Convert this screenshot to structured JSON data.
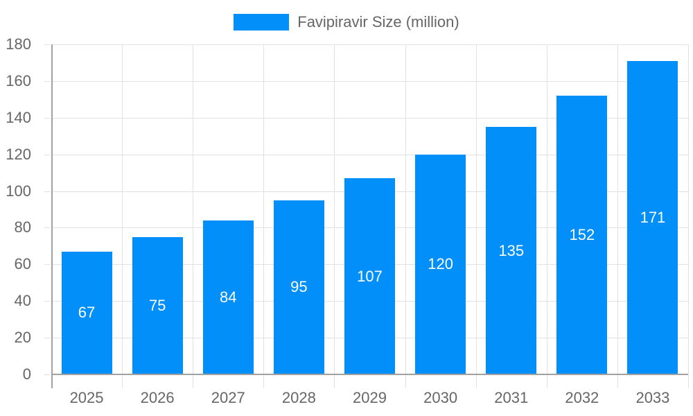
{
  "chart_data": {
    "type": "bar",
    "title": "",
    "xlabel": "",
    "ylabel": "",
    "categories": [
      "2025",
      "2026",
      "2027",
      "2028",
      "2029",
      "2030",
      "2031",
      "2032",
      "2033"
    ],
    "series": [
      {
        "name": "Favipiravir Size (million)",
        "color": "#038ffa",
        "values": [
          67,
          75,
          84,
          95,
          107,
          120,
          135,
          152,
          171
        ]
      }
    ],
    "ylim": [
      0,
      180
    ],
    "yticks": [
      0,
      20,
      40,
      60,
      80,
      100,
      120,
      140,
      160,
      180
    ],
    "grid": true,
    "legend_position": "top",
    "data_labels": true
  },
  "legend": {
    "label": "Favipiravir Size (million)",
    "color": "#038ffa"
  }
}
